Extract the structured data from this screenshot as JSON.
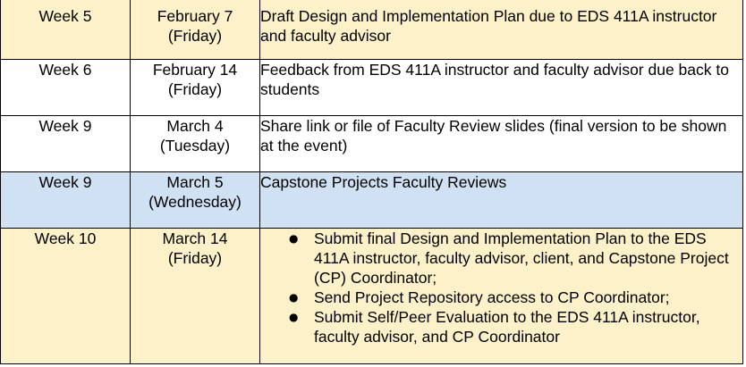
{
  "rows": [
    {
      "week": "Week 5",
      "date_line1": "February 7",
      "date_line2": "(Friday)",
      "description": "Draft Design and Implementation Plan due to EDS 411A instructor and faculty advisor",
      "background": "#fdf1c9"
    },
    {
      "week": "Week 6",
      "date_line1": "February 14",
      "date_line2": "(Friday)",
      "description": "Feedback from EDS 411A instructor and faculty advisor due back to students",
      "background": "#ffffff"
    },
    {
      "week": "Week 9",
      "date_line1": "March 4",
      "date_line2": "(Tuesday)",
      "description": "Share link or file of Faculty Review slides (final version to be shown at the event)",
      "background": "#ffffff"
    },
    {
      "week": "Week 9",
      "date_line1": "March 5",
      "date_line2": "(Wednesday)",
      "description": "Capstone Projects Faculty Reviews",
      "background": "#cfe1f2"
    },
    {
      "week": "Week 10",
      "date_line1": "March 14",
      "date_line2": "(Friday)",
      "bullets": [
        "Submit final Design and Implementation Plan to the EDS 411A instructor, faculty advisor, client, and Capstone Project (CP) Coordinator;",
        "Send Project Repository access to CP Coordinator;",
        "Submit Self/Peer Evaluation to the EDS 411A instructor, faculty advisor, and CP Coordinator"
      ],
      "background": "#fdf1c9"
    }
  ]
}
